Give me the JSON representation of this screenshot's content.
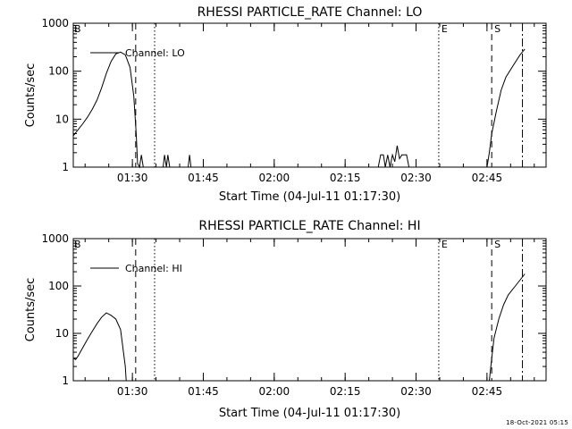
{
  "colors": {
    "background": "#ffffff",
    "foreground": "#000000"
  },
  "timestamp": "18-Oct-2021 05:15",
  "chart_data": [
    {
      "type": "line",
      "title": "RHESSI PARTICLE_RATE Channel: LO",
      "xlabel": "Start Time (04-Jul-11 01:17:30)",
      "ylabel": "Counts/sec",
      "yscale": "log",
      "ylim": [
        1,
        1000
      ],
      "xlim_minutes": [
        0,
        100
      ],
      "xticks": [
        {
          "t": 12.5,
          "label": "01:30"
        },
        {
          "t": 27.5,
          "label": "01:45"
        },
        {
          "t": 42.5,
          "label": "02:00"
        },
        {
          "t": 57.5,
          "label": "02:15"
        },
        {
          "t": 72.5,
          "label": "02:30"
        },
        {
          "t": 87.5,
          "label": "02:45"
        }
      ],
      "yticks": [
        {
          "v": 1,
          "label": "1"
        },
        {
          "v": 10,
          "label": "10"
        },
        {
          "v": 100,
          "label": "100"
        },
        {
          "v": 1000,
          "label": "1000"
        }
      ],
      "legend": "Channel: LO",
      "markers": [
        {
          "t": 13.2,
          "style": "dashed",
          "label": ""
        },
        {
          "t": 17.2,
          "style": "dotted",
          "label": ""
        },
        {
          "t": 77.3,
          "style": "dotted",
          "label": "E"
        },
        {
          "t": 88.5,
          "style": "dashed",
          "label": "S"
        },
        {
          "t": 95.0,
          "style": "dashdot",
          "label": ""
        }
      ],
      "corner_label": "B",
      "series": [
        {
          "name": "Channel: LO",
          "segments": [
            [
              [
                0,
                4.5
              ],
              [
                1,
                6
              ],
              [
                2,
                8
              ],
              [
                3,
                11
              ],
              [
                4,
                16
              ],
              [
                5,
                25
              ],
              [
                6,
                45
              ],
              [
                7,
                90
              ],
              [
                8,
                160
              ],
              [
                9,
                230
              ],
              [
                10,
                250
              ],
              [
                11,
                220
              ],
              [
                12,
                120
              ],
              [
                12.8,
                30
              ],
              [
                13.3,
                5
              ],
              [
                13.6,
                1.2
              ],
              [
                14,
                1
              ],
              [
                14.4,
                1.8
              ],
              [
                14.8,
                1
              ]
            ],
            [
              [
                19,
                1
              ],
              [
                19.3,
                1.8
              ],
              [
                19.7,
                1
              ],
              [
                20,
                1.8
              ],
              [
                20.4,
                1
              ]
            ],
            [
              [
                24.3,
                1
              ],
              [
                24.6,
                1.8
              ],
              [
                24.9,
                1
              ]
            ],
            [
              [
                64.5,
                1
              ],
              [
                65,
                1.8
              ],
              [
                65.6,
                1.8
              ],
              [
                66,
                1
              ],
              [
                66.5,
                1.8
              ],
              [
                67,
                1
              ],
              [
                67.5,
                1.8
              ],
              [
                68,
                1.3
              ],
              [
                68.5,
                2.8
              ],
              [
                69,
                1.5
              ],
              [
                69.5,
                1.8
              ],
              [
                70.5,
                1.8
              ],
              [
                71,
                1
              ]
            ],
            [
              [
                87.5,
                1
              ],
              [
                88,
                2
              ],
              [
                88.5,
                5
              ],
              [
                89.5,
                15
              ],
              [
                90.5,
                40
              ],
              [
                91.5,
                75
              ],
              [
                93,
                130
              ],
              [
                94.5,
                220
              ],
              [
                95.5,
                290
              ]
            ]
          ]
        }
      ]
    },
    {
      "type": "line",
      "title": "RHESSI PARTICLE_RATE Channel: HI",
      "xlabel": "Start Time (04-Jul-11 01:17:30)",
      "ylabel": "Counts/sec",
      "yscale": "log",
      "ylim": [
        1,
        1000
      ],
      "xlim_minutes": [
        0,
        100
      ],
      "xticks": [
        {
          "t": 12.5,
          "label": "01:30"
        },
        {
          "t": 27.5,
          "label": "01:45"
        },
        {
          "t": 42.5,
          "label": "02:00"
        },
        {
          "t": 57.5,
          "label": "02:15"
        },
        {
          "t": 72.5,
          "label": "02:30"
        },
        {
          "t": 87.5,
          "label": "02:45"
        }
      ],
      "yticks": [
        {
          "v": 1,
          "label": "1"
        },
        {
          "v": 10,
          "label": "10"
        },
        {
          "v": 100,
          "label": "100"
        },
        {
          "v": 1000,
          "label": "1000"
        }
      ],
      "legend": "Channel: HI",
      "markers": [
        {
          "t": 13.2,
          "style": "dashed",
          "label": ""
        },
        {
          "t": 17.2,
          "style": "dotted",
          "label": ""
        },
        {
          "t": 77.3,
          "style": "dotted",
          "label": "E"
        },
        {
          "t": 88.5,
          "style": "dashed",
          "label": "S"
        },
        {
          "t": 95.0,
          "style": "dashdot",
          "label": ""
        }
      ],
      "corner_label": "B",
      "series": [
        {
          "name": "Channel: HI",
          "segments": [
            [
              [
                0,
                3
              ],
              [
                0.5,
                2.8
              ],
              [
                1,
                3.3
              ],
              [
                2,
                5
              ],
              [
                3,
                7.5
              ],
              [
                4,
                11
              ],
              [
                5,
                16
              ],
              [
                6,
                22
              ],
              [
                7,
                27
              ],
              [
                8,
                24
              ],
              [
                9,
                20
              ],
              [
                10,
                12
              ],
              [
                10.5,
                5
              ],
              [
                11,
                2
              ],
              [
                11.2,
                1
              ]
            ],
            [
              [
                88,
                1
              ],
              [
                88.5,
                3
              ],
              [
                89,
                8
              ],
              [
                90,
                20
              ],
              [
                91,
                40
              ],
              [
                92,
                65
              ],
              [
                93.5,
                100
              ],
              [
                95.5,
                180
              ]
            ]
          ]
        }
      ]
    }
  ]
}
